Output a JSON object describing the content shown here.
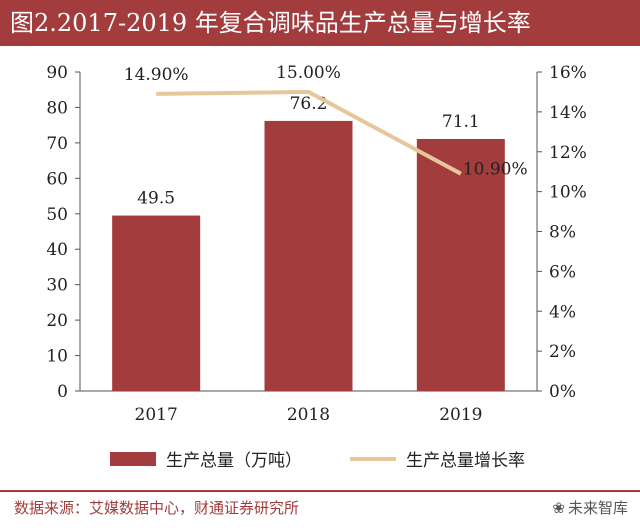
{
  "title": "图2.2017-2019 年复合调味品生产总量与增长率",
  "source": "数据来源：艾媒数据中心，财通证券研究所",
  "watermark": "未来智库",
  "watermark_icon": "paw-icon",
  "colors": {
    "bar": "#a33c3c",
    "line": "#e6c79b",
    "title_bg": "#a33c3c",
    "axis": "#555555"
  },
  "chart_data": {
    "type": "bar",
    "categories": [
      "2017",
      "2018",
      "2019"
    ],
    "series": [
      {
        "name": "生产总量（万吨）",
        "type": "bar",
        "axis": "left",
        "values": [
          49.5,
          76.2,
          71.1
        ],
        "labels": [
          "49.5",
          "76.2",
          "71.1"
        ]
      },
      {
        "name": "生产总量增长率",
        "type": "line",
        "axis": "right",
        "values": [
          14.9,
          15.0,
          10.9
        ],
        "labels": [
          "14.90%",
          "15.00%",
          "10.90%"
        ]
      }
    ],
    "y_left": {
      "ylim": [
        0,
        90
      ],
      "ticks": [
        "0",
        "10",
        "20",
        "30",
        "40",
        "50",
        "60",
        "70",
        "80",
        "90"
      ]
    },
    "y_right": {
      "ylim": [
        0,
        16
      ],
      "ticks": [
        "0%",
        "2%",
        "4%",
        "6%",
        "8%",
        "10%",
        "12%",
        "14%",
        "16%"
      ]
    },
    "grid": false,
    "legend": "bottom"
  }
}
